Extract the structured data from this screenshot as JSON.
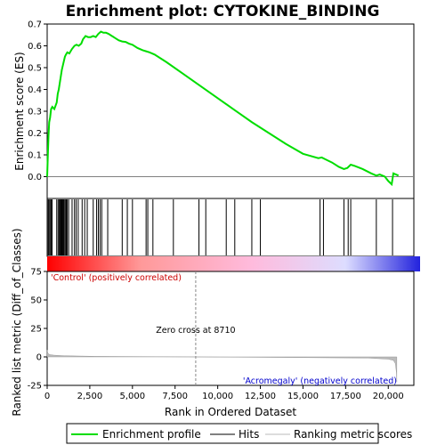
{
  "chart_data": {
    "title": "Enrichment plot: CYTOKINE_BINDING",
    "type": "line",
    "x_label": "Rank in Ordered Dataset",
    "x_range": [
      0,
      21500
    ],
    "x_ticks": [
      0,
      2500,
      5000,
      7500,
      10000,
      12500,
      15000,
      17500,
      20000
    ],
    "x_tick_labels": [
      "0",
      "2,500",
      "5,000",
      "7,500",
      "10,000",
      "12,500",
      "15,000",
      "17,500",
      "20,000"
    ],
    "es_panel": {
      "ylabel": "Enrichment score (ES)",
      "ylim": [
        -0.1,
        0.7
      ],
      "yticks": [
        0.0,
        0.1,
        0.2,
        0.3,
        0.4,
        0.5,
        0.6,
        0.7
      ],
      "ytick_labels": [
        "0.0",
        "0.1",
        "0.2",
        "0.3",
        "0.4",
        "0.5",
        "0.6",
        "0.7"
      ],
      "series": [
        {
          "name": "Enrichment profile",
          "color": "#00dd00",
          "x": [
            0,
            40,
            80,
            120,
            170,
            230,
            300,
            420,
            560,
            620,
            680,
            740,
            800,
            860,
            920,
            980,
            1040,
            1100,
            1180,
            1300,
            1450,
            1600,
            1720,
            1850,
            2000,
            2100,
            2250,
            2400,
            2550,
            2700,
            2850,
            3000,
            3150,
            3300,
            3450,
            3600,
            3800,
            4000,
            4200,
            4400,
            4600,
            4800,
            5000,
            5300,
            5600,
            5800,
            6000,
            6300,
            7000,
            8000,
            9000,
            10000,
            11000,
            12000,
            13000,
            14000,
            15000,
            15900,
            16100,
            16300,
            16700,
            17100,
            17400,
            17600,
            17800,
            18000,
            18500,
            19000,
            19300,
            19500,
            19800,
            20000,
            20200,
            20300,
            20600
          ],
          "y": [
            0.0,
            0.1,
            0.19,
            0.25,
            0.27,
            0.31,
            0.32,
            0.31,
            0.34,
            0.38,
            0.4,
            0.43,
            0.46,
            0.49,
            0.51,
            0.53,
            0.55,
            0.56,
            0.57,
            0.565,
            0.585,
            0.6,
            0.605,
            0.6,
            0.61,
            0.63,
            0.645,
            0.64,
            0.64,
            0.645,
            0.64,
            0.655,
            0.665,
            0.66,
            0.66,
            0.655,
            0.645,
            0.635,
            0.625,
            0.62,
            0.618,
            0.61,
            0.605,
            0.59,
            0.58,
            0.575,
            0.57,
            0.56,
            0.525,
            0.47,
            0.415,
            0.36,
            0.305,
            0.25,
            0.2,
            0.15,
            0.105,
            0.085,
            0.088,
            0.08,
            0.065,
            0.045,
            0.035,
            0.04,
            0.055,
            0.05,
            0.035,
            0.015,
            0.005,
            0.01,
            0.0,
            -0.02,
            -0.035,
            0.015,
            0.005
          ]
        }
      ]
    },
    "hits": {
      "name": "Hits",
      "color": "#000000",
      "positions": [
        60,
        110,
        170,
        230,
        290,
        560,
        640,
        700,
        760,
        800,
        840,
        880,
        920,
        960,
        1000,
        1060,
        1120,
        1180,
        1260,
        1460,
        1600,
        1700,
        1820,
        2050,
        2200,
        2350,
        2700,
        2900,
        3000,
        3100,
        3200,
        3550,
        4400,
        4700,
        5000,
        5800,
        5900,
        6200,
        7400,
        8900,
        9300,
        10500,
        11000,
        12000,
        12500,
        16000,
        16200,
        17400,
        17650,
        17800,
        19300,
        20250
      ]
    },
    "rank_bar": {
      "gradient_stops": [
        "#ff0000",
        "#ff9999",
        "#ffbbdd",
        "#ddddff",
        "#2222dd"
      ],
      "stop_positions": [
        0.0,
        0.25,
        0.55,
        0.8,
        1.0
      ]
    },
    "metric_panel": {
      "name": "Ranking metric scores",
      "ylabel": "Ranked list metric (Diff_of_Classes)",
      "ylim": [
        -25,
        75
      ],
      "yticks": [
        -25,
        0,
        25,
        50,
        75
      ],
      "ytick_labels": [
        "-25",
        "0",
        "25",
        "50",
        "75"
      ],
      "color": "#bbbbbb",
      "x": [
        0,
        50,
        150,
        400,
        1000,
        2800,
        8710,
        18800,
        20000,
        20300,
        20420,
        20480,
        20500
      ],
      "y": [
        6,
        3,
        2,
        1.5,
        1,
        0.5,
        0,
        -1,
        -2,
        -3,
        -6,
        -14,
        -22
      ]
    },
    "zero_cross_text": "Zero cross at 8710",
    "zero_cross_x": 8710,
    "positive_label": "'Control' (positively correlated)",
    "negative_label": "'Acromegaly' (negatively correlated)",
    "legend": [
      {
        "label": "Enrichment profile",
        "color": "#00dd00"
      },
      {
        "label": "Hits",
        "color": "#000000"
      },
      {
        "label": "Ranking metric scores",
        "color": "#bbbbbb"
      }
    ]
  }
}
